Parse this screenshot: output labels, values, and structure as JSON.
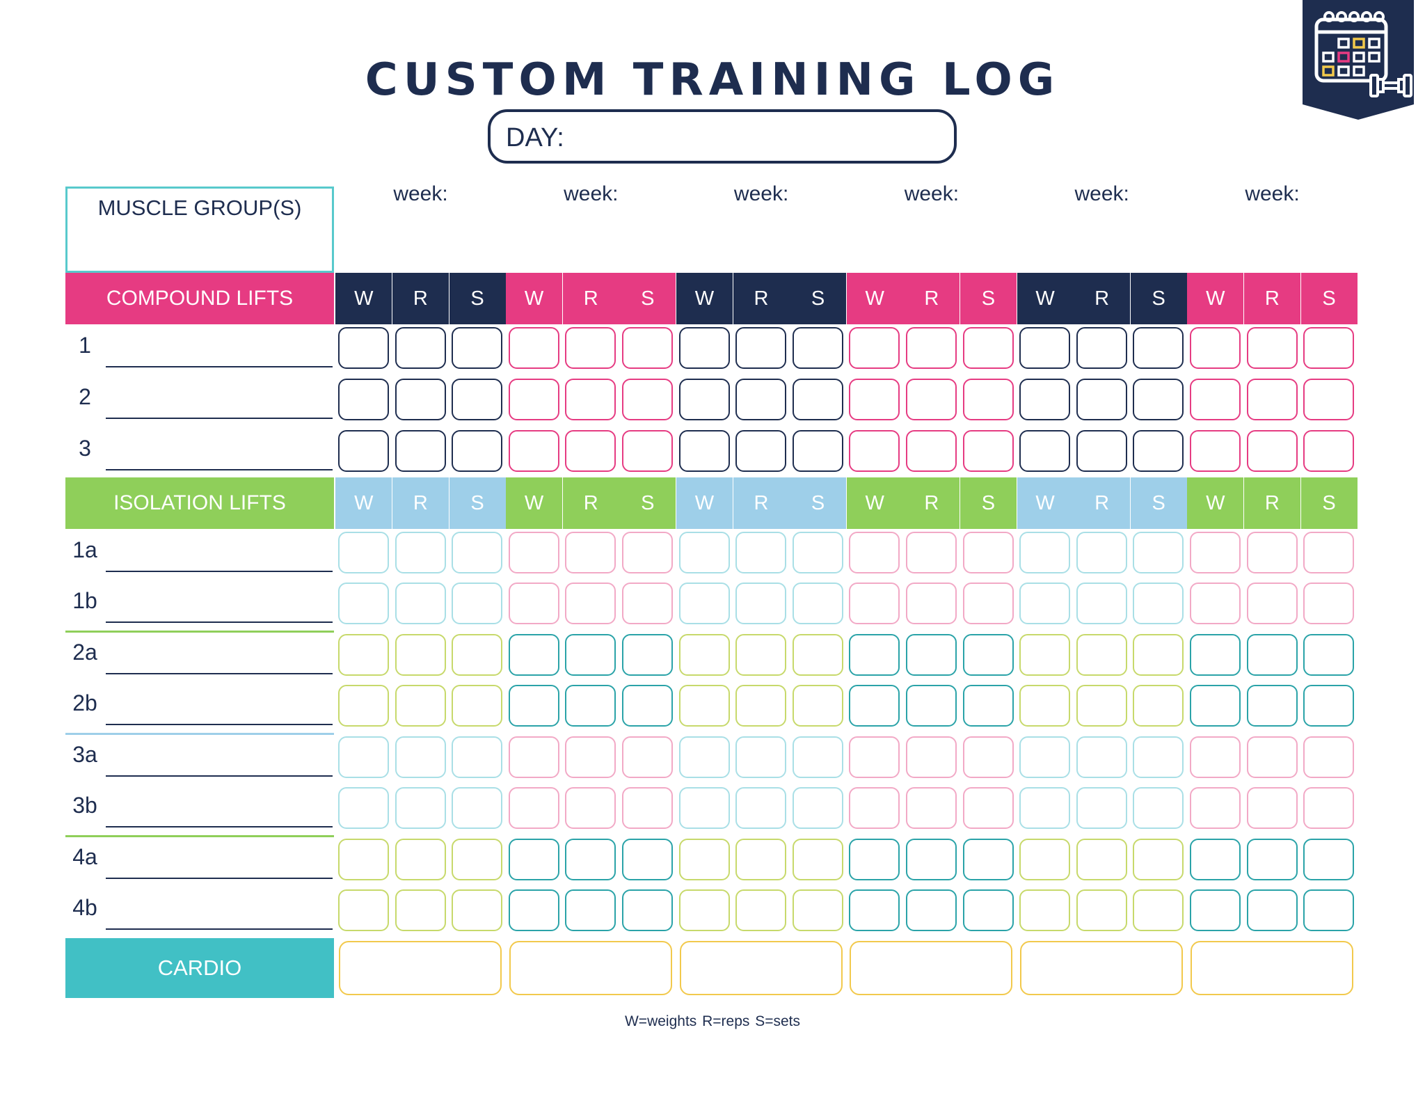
{
  "title": "CUSTOM TRAINING LOG",
  "day_label": "DAY:",
  "muscle_groups_label": "MUSCLE GROUP(S)",
  "week_labels": [
    "week:",
    "week:",
    "week:",
    "week:",
    "week:",
    "week:"
  ],
  "compound": {
    "label": "COMPOUND LIFTS",
    "color": "#e63b82",
    "rows": [
      "1",
      "2",
      "3"
    ]
  },
  "isolation": {
    "label": "ISOLATION LIFTS",
    "color": "#8fcf5a",
    "rows": [
      "1a",
      "1b",
      "2a",
      "2b",
      "3a",
      "3b",
      "4a",
      "4b"
    ]
  },
  "cardio": {
    "label": "CARDIO",
    "color": "#41c0c5"
  },
  "column_headers": [
    "W",
    "R",
    "S"
  ],
  "legend": "W=weights  R=reps  S=sets",
  "colors": {
    "navy": "#1e2d4f",
    "pink": "#e63b82",
    "light_blue": "#9ecfe9",
    "green": "#8fcf5a",
    "teal": "#2aa3a8",
    "light_pink": "#f2a9c6",
    "light_teal": "#a9dfe6",
    "lime": "#c7d96b",
    "yellow": "#f2c94c"
  },
  "icon": "calendar-dumbbell-icon"
}
